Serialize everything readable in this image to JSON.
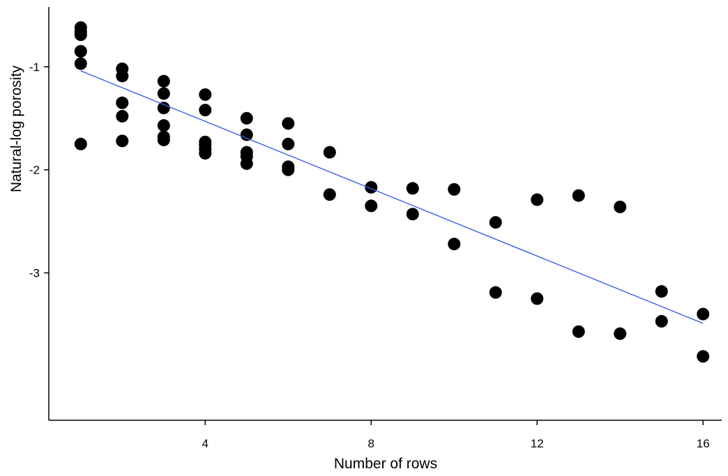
{
  "chart_data": {
    "type": "scatter",
    "title": "",
    "xlabel": "Number of rows",
    "ylabel": "Natural-log porosity",
    "xlim": [
      0.23,
      16.45
    ],
    "ylim": [
      -4.43,
      -0.42
    ],
    "xticks": [
      4,
      8,
      12,
      16
    ],
    "yticks": [
      -1,
      -2,
      -3
    ],
    "x_tick_labels": [
      "4",
      "8",
      "12",
      "16"
    ],
    "y_tick_labels": [
      "-1",
      "-2",
      "-3"
    ],
    "grid": false,
    "legend": "none",
    "marker_color": "#000000",
    "fit_line_color": "#3b5ee6",
    "points": [
      {
        "x": 1,
        "y": -0.62
      },
      {
        "x": 1,
        "y": -0.66
      },
      {
        "x": 1,
        "y": -0.69
      },
      {
        "x": 1,
        "y": -0.85
      },
      {
        "x": 1,
        "y": -0.97
      },
      {
        "x": 1,
        "y": -1.75
      },
      {
        "x": 2,
        "y": -1.02
      },
      {
        "x": 2,
        "y": -1.09
      },
      {
        "x": 2,
        "y": -1.35
      },
      {
        "x": 2,
        "y": -1.48
      },
      {
        "x": 2,
        "y": -1.72
      },
      {
        "x": 3,
        "y": -1.14
      },
      {
        "x": 3,
        "y": -1.26
      },
      {
        "x": 3,
        "y": -1.4
      },
      {
        "x": 3,
        "y": -1.57
      },
      {
        "x": 3,
        "y": -1.68
      },
      {
        "x": 3,
        "y": -1.71
      },
      {
        "x": 4,
        "y": -1.27
      },
      {
        "x": 4,
        "y": -1.42
      },
      {
        "x": 4,
        "y": -1.73
      },
      {
        "x": 4,
        "y": -1.76
      },
      {
        "x": 4,
        "y": -1.8
      },
      {
        "x": 4,
        "y": -1.84
      },
      {
        "x": 5,
        "y": -1.5
      },
      {
        "x": 5,
        "y": -1.66
      },
      {
        "x": 5,
        "y": -1.83
      },
      {
        "x": 5,
        "y": -1.87
      },
      {
        "x": 5,
        "y": -1.94
      },
      {
        "x": 6,
        "y": -1.55
      },
      {
        "x": 6,
        "y": -1.75
      },
      {
        "x": 6,
        "y": -1.97
      },
      {
        "x": 6,
        "y": -2.0
      },
      {
        "x": 7,
        "y": -1.83
      },
      {
        "x": 7,
        "y": -2.24
      },
      {
        "x": 8,
        "y": -2.17
      },
      {
        "x": 8,
        "y": -2.35
      },
      {
        "x": 9,
        "y": -2.18
      },
      {
        "x": 9,
        "y": -2.43
      },
      {
        "x": 10,
        "y": -2.19
      },
      {
        "x": 10,
        "y": -2.72
      },
      {
        "x": 11,
        "y": -2.51
      },
      {
        "x": 11,
        "y": -3.19
      },
      {
        "x": 12,
        "y": -2.29
      },
      {
        "x": 12,
        "y": -3.25
      },
      {
        "x": 13,
        "y": -2.25
      },
      {
        "x": 13,
        "y": -3.57
      },
      {
        "x": 14,
        "y": -2.36
      },
      {
        "x": 14,
        "y": -3.59
      },
      {
        "x": 15,
        "y": -3.18
      },
      {
        "x": 15,
        "y": -3.47
      },
      {
        "x": 16,
        "y": -3.4
      },
      {
        "x": 16,
        "y": -3.81
      }
    ],
    "fit_line": {
      "x": [
        1,
        16
      ],
      "y": [
        -1.04,
        -3.49
      ]
    }
  }
}
